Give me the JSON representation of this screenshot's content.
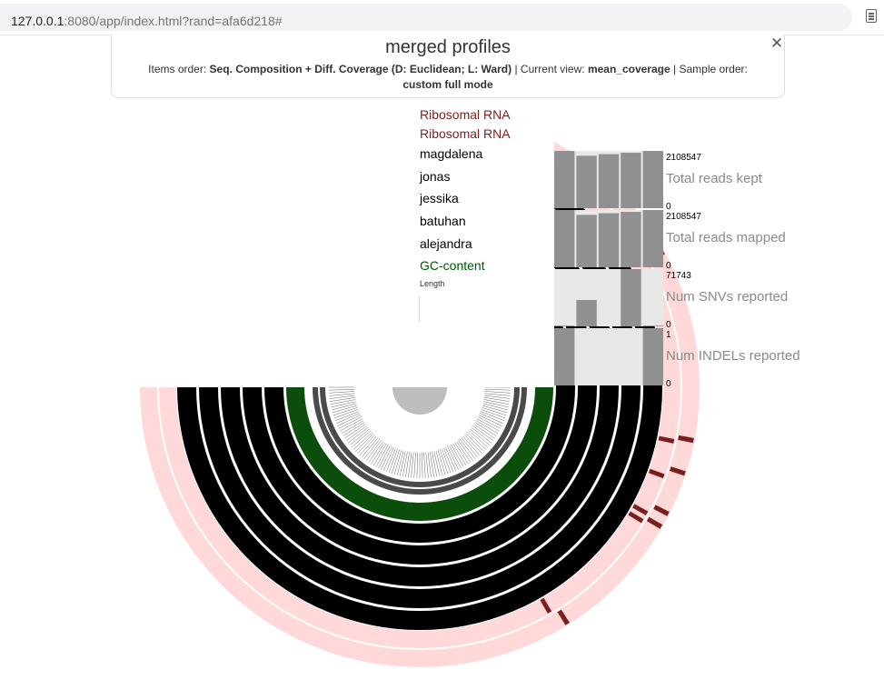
{
  "browser": {
    "url_host": "127.0.0.1",
    "url_rest": ":8080/app/index.html?rand=afa6d218#"
  },
  "panel": {
    "title": "merged profiles",
    "items_order_label": "Items order:",
    "items_order_value": "Seq. Composition + Diff. Coverage (D: Euclidean; L: Ward)",
    "current_view_label": "| Current view:",
    "current_view_value": "mean_coverage",
    "sample_order_label": "| Sample order:",
    "sample_order_value": "custom",
    "mode": "full mode",
    "close_glyph": "✕"
  },
  "layers": [
    {
      "name": "Ribosomal RNA",
      "color": "#7b1e1e"
    },
    {
      "name": "Ribosomal RNA",
      "color": "#7b1e1e"
    },
    {
      "name": "magdalena",
      "color": "#000000"
    },
    {
      "name": "jonas",
      "color": "#000000"
    },
    {
      "name": "jessika",
      "color": "#000000"
    },
    {
      "name": "batuhan",
      "color": "#000000"
    },
    {
      "name": "alejandra",
      "color": "#000000"
    },
    {
      "name": "GC-content",
      "color": "#005500"
    },
    {
      "name": "Length",
      "color": "#333333"
    }
  ],
  "bar_layers": [
    {
      "name": "Total reads kept",
      "max": "2108547",
      "min": "0",
      "values": [
        2108547,
        1930000,
        1990000,
        2040000,
        2108547
      ]
    },
    {
      "name": "Total reads mapped",
      "max": "2108547",
      "min": "0",
      "values": [
        2108547,
        1930000,
        1990000,
        2040000,
        2108547
      ]
    },
    {
      "name": "Num SNVs reported",
      "max": "71743",
      "min": "0",
      "values": [
        900,
        33000,
        0,
        71743,
        900
      ]
    },
    {
      "name": "Num INDELs reported",
      "max": "1",
      "min": "0",
      "values": [
        1,
        0,
        0,
        0,
        1
      ]
    }
  ],
  "colors": {
    "rrna_bg": "#ffd9d9",
    "rrna_hit": "#7b1e1e",
    "coverage": "#000000",
    "gc": "#0b4d0b",
    "bar": "#909090",
    "bar_bg": "#e8e8e8"
  },
  "icons": {
    "reader": "reader-mode-icon",
    "close": "close-icon"
  }
}
